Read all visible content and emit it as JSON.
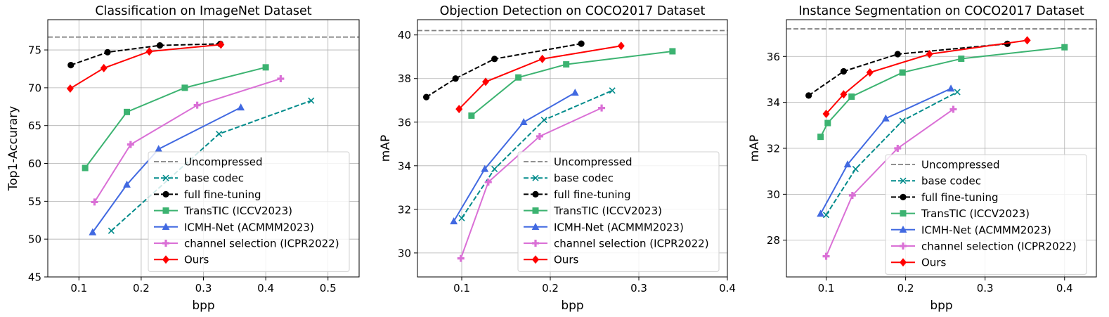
{
  "chart_data": [
    {
      "type": "line",
      "title": "Classification on ImageNet Dataset",
      "xlabel": "bpp",
      "ylabel": "Top1-Accurary",
      "xlim": [
        0.05,
        0.55
      ],
      "ylim": [
        45,
        79
      ],
      "xticks": [
        0.1,
        0.2,
        0.3,
        0.4,
        0.5
      ],
      "xtick_labels": [
        "0.1",
        "0.2",
        "0.3",
        "0.4",
        "0.5"
      ],
      "yticks": [
        45,
        50,
        55,
        60,
        65,
        70,
        75
      ],
      "ytick_labels": [
        "45",
        "50",
        "55",
        "60",
        "65",
        "70",
        "75"
      ],
      "grid": true,
      "legend_position": "lower-right",
      "series": [
        {
          "name": "Uncompressed",
          "style": "hline",
          "color": "#808080",
          "y": 76.7
        },
        {
          "name": "base codec",
          "style": "dashed",
          "marker": "x",
          "color": "#008B8B",
          "x": [
            0.152,
            0.325,
            0.473
          ],
          "y": [
            51.1,
            63.9,
            68.3
          ]
        },
        {
          "name": "full fine-tuning",
          "style": "dashed",
          "marker": "circle",
          "color": "#000000",
          "x": [
            0.087,
            0.146,
            0.23,
            0.327
          ],
          "y": [
            73.0,
            74.7,
            75.6,
            75.8
          ]
        },
        {
          "name": "TransTIC (ICCV2023)",
          "style": "solid",
          "marker": "square",
          "color": "#3CB371",
          "x": [
            0.11,
            0.177,
            0.27,
            0.4
          ],
          "y": [
            59.4,
            66.8,
            70.0,
            72.7
          ]
        },
        {
          "name": "ICMH-Net (ACMMM2023)",
          "style": "solid",
          "marker": "triangle",
          "color": "#4169E1",
          "x": [
            0.122,
            0.177,
            0.228,
            0.36
          ],
          "y": [
            50.9,
            57.2,
            61.9,
            67.4
          ]
        },
        {
          "name": "channel selection (ICPR2022)",
          "style": "solid",
          "marker": "plus",
          "color": "#DA70D6",
          "x": [
            0.125,
            0.183,
            0.29,
            0.424
          ],
          "y": [
            54.9,
            62.5,
            67.7,
            71.2
          ]
        },
        {
          "name": "Ours",
          "style": "solid",
          "marker": "diamond",
          "color": "#FF0000",
          "x": [
            0.086,
            0.14,
            0.213,
            0.328
          ],
          "y": [
            69.9,
            72.6,
            74.8,
            75.7
          ]
        }
      ]
    },
    {
      "type": "line",
      "title": "Objection Detection on COCO2017 Dataset",
      "xlabel": "bpp",
      "ylabel": "mAP",
      "xlim": [
        0.05,
        0.4
      ],
      "ylim": [
        28.9,
        40.7
      ],
      "xticks": [
        0.1,
        0.2,
        0.3,
        0.4
      ],
      "xtick_labels": [
        "0.1",
        "0.2",
        "0.3",
        "0.4"
      ],
      "yticks": [
        30,
        32,
        34,
        36,
        38,
        40
      ],
      "ytick_labels": [
        "30",
        "32",
        "34",
        "36",
        "38",
        "40"
      ],
      "grid": true,
      "legend_position": "lower-right",
      "series": [
        {
          "name": "Uncompressed",
          "style": "hline",
          "color": "#808080",
          "y": 40.2
        },
        {
          "name": "base codec",
          "style": "dashed",
          "marker": "x",
          "color": "#008B8B",
          "x": [
            0.1,
            0.137,
            0.193,
            0.27
          ],
          "y": [
            31.6,
            33.85,
            36.1,
            37.45
          ]
        },
        {
          "name": "full fine-tuning",
          "style": "dashed",
          "marker": "circle",
          "color": "#000000",
          "x": [
            0.06,
            0.093,
            0.137,
            0.235
          ],
          "y": [
            37.15,
            38.0,
            38.9,
            39.6
          ]
        },
        {
          "name": "TransTIC (ICCV2023)",
          "style": "solid",
          "marker": "square",
          "color": "#3CB371",
          "x": [
            0.111,
            0.164,
            0.218,
            0.338
          ],
          "y": [
            36.3,
            38.05,
            38.65,
            39.25
          ]
        },
        {
          "name": "ICMH-Net (ACMMM2023)",
          "style": "solid",
          "marker": "triangle",
          "color": "#4169E1",
          "x": [
            0.091,
            0.126,
            0.17,
            0.228
          ],
          "y": [
            31.45,
            33.85,
            36.0,
            37.35
          ]
        },
        {
          "name": "channel selection (ICPR2022)",
          "style": "solid",
          "marker": "plus",
          "color": "#DA70D6",
          "x": [
            0.099,
            0.13,
            0.188,
            0.258
          ],
          "y": [
            29.75,
            33.25,
            35.35,
            36.65
          ]
        },
        {
          "name": "Ours",
          "style": "solid",
          "marker": "diamond",
          "color": "#FF0000",
          "x": [
            0.097,
            0.127,
            0.191,
            0.28
          ],
          "y": [
            36.6,
            37.85,
            38.9,
            39.5
          ]
        }
      ]
    },
    {
      "type": "line",
      "title": "Instance Segmentation on COCO2017 Dataset",
      "xlabel": "bpp",
      "ylabel": "mAP",
      "xlim": [
        0.05,
        0.44
      ],
      "ylim": [
        26.4,
        37.6
      ],
      "xticks": [
        0.1,
        0.2,
        0.3,
        0.4
      ],
      "xtick_labels": [
        "0.1",
        "0.2",
        "0.3",
        "0.4"
      ],
      "yticks": [
        28,
        30,
        32,
        34,
        36
      ],
      "ytick_labels": [
        "28",
        "30",
        "32",
        "34",
        "36"
      ],
      "grid": true,
      "legend_position": "lower-right",
      "series": [
        {
          "name": "Uncompressed",
          "style": "hline",
          "color": "#808080",
          "y": 37.2
        },
        {
          "name": "base codec",
          "style": "dashed",
          "marker": "x",
          "color": "#008B8B",
          "x": [
            0.1,
            0.137,
            0.196,
            0.265
          ],
          "y": [
            29.1,
            31.1,
            33.2,
            34.45
          ]
        },
        {
          "name": "full fine-tuning",
          "style": "dashed",
          "marker": "circle",
          "color": "#000000",
          "x": [
            0.078,
            0.122,
            0.19,
            0.328
          ],
          "y": [
            34.3,
            35.35,
            36.1,
            36.55
          ]
        },
        {
          "name": "TransTIC (ICCV2023)",
          "style": "solid",
          "marker": "square",
          "color": "#3CB371",
          "x": [
            0.093,
            0.102,
            0.132,
            0.196,
            0.27,
            0.4
          ],
          "y": [
            32.5,
            33.1,
            34.25,
            35.3,
            35.9,
            36.4
          ]
        },
        {
          "name": "ICMH-Net (ACMMM2023)",
          "style": "solid",
          "marker": "triangle",
          "color": "#4169E1",
          "x": [
            0.093,
            0.127,
            0.175,
            0.257
          ],
          "y": [
            29.15,
            31.3,
            33.3,
            34.6
          ]
        },
        {
          "name": "channel selection (ICPR2022)",
          "style": "solid",
          "marker": "plus",
          "color": "#DA70D6",
          "x": [
            0.1,
            0.133,
            0.19,
            0.26
          ],
          "y": [
            27.3,
            29.95,
            32.0,
            33.7
          ]
        },
        {
          "name": "Ours",
          "style": "solid",
          "marker": "diamond",
          "color": "#FF0000",
          "x": [
            0.1,
            0.122,
            0.155,
            0.23,
            0.353
          ],
          "y": [
            33.5,
            34.35,
            35.3,
            36.1,
            36.7
          ]
        }
      ]
    }
  ]
}
